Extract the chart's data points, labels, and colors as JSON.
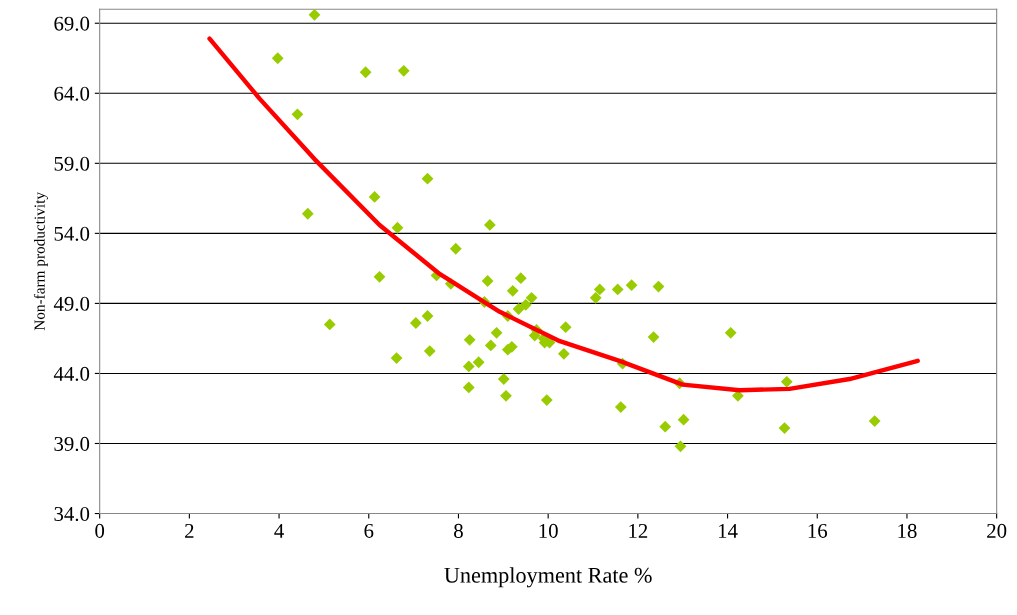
{
  "chart_data": {
    "type": "scatter",
    "xlabel": "Unemployment Rate %",
    "ylabel": "Non-farm productivity",
    "xlim": [
      0,
      20
    ],
    "ylim": [
      34,
      70
    ],
    "xticks": [
      0,
      2,
      4,
      6,
      8,
      10,
      12,
      14,
      16,
      18,
      20
    ],
    "yticks": [
      {
        "value": 34,
        "label": "34.0"
      },
      {
        "value": 39,
        "label": "39.0"
      },
      {
        "value": 44,
        "label": "44.0"
      },
      {
        "value": 49,
        "label": "49.0"
      },
      {
        "value": 54,
        "label": "54.0"
      },
      {
        "value": 59,
        "label": "59.0"
      },
      {
        "value": 64,
        "label": "64.0"
      },
      {
        "value": 69,
        "label": "69.0"
      }
    ],
    "grid": "y",
    "series": [
      {
        "color": "#99cc00",
        "marker": "diamond",
        "x": [
          3.97,
          4.79,
          4.41,
          4.64,
          5.93,
          6.78,
          6.13,
          6.64,
          6.24,
          5.13,
          6.62,
          7.05,
          7.31,
          7.31,
          7.36,
          7.94,
          7.51,
          7.83,
          8.7,
          8.65,
          8.25,
          8.23,
          8.45,
          8.23,
          8.58,
          8.85,
          8.72,
          9.1,
          9.21,
          9.39,
          9.34,
          9.5,
          9.63,
          9.19,
          9.1,
          9.01,
          9.06,
          9.74,
          9.7,
          9.9,
          9.92,
          10.03,
          9.97,
          10.39,
          10.35,
          11.06,
          11.15,
          11.55,
          11.86,
          12.46,
          11.66,
          11.62,
          12.35,
          12.61,
          12.93,
          13.02,
          12.95,
          14.07,
          14.23,
          15.32,
          15.27,
          17.28
        ],
        "values": [
          66.5,
          69.6,
          62.5,
          55.4,
          65.5,
          65.6,
          56.6,
          54.4,
          50.9,
          47.5,
          45.1,
          47.6,
          57.9,
          48.1,
          45.6,
          52.9,
          51.0,
          50.4,
          54.6,
          50.6,
          46.4,
          44.5,
          44.8,
          43.0,
          49.1,
          46.9,
          46.0,
          48.1,
          49.9,
          50.8,
          48.6,
          48.9,
          49.4,
          45.9,
          45.7,
          43.6,
          42.4,
          47.1,
          46.7,
          46.5,
          46.2,
          46.2,
          42.1,
          47.3,
          45.4,
          49.4,
          50.0,
          50.0,
          50.3,
          50.2,
          44.7,
          41.6,
          46.6,
          40.2,
          43.3,
          40.7,
          38.8,
          46.9,
          42.4,
          43.4,
          40.1,
          40.6
        ]
      },
      {
        "type": "line",
        "color": "#ff0000",
        "marker": "none",
        "line_style": "solid",
        "x": [
          2.45,
          3.57,
          4.79,
          6.24,
          7.58,
          8.92,
          10.26,
          11.59,
          13.0,
          14.27,
          15.38,
          16.72,
          18.24
        ],
        "values": [
          67.9,
          63.6,
          59.3,
          54.6,
          51.1,
          48.4,
          46.3,
          44.9,
          43.2,
          42.8,
          42.9,
          43.6,
          44.9
        ]
      }
    ]
  }
}
